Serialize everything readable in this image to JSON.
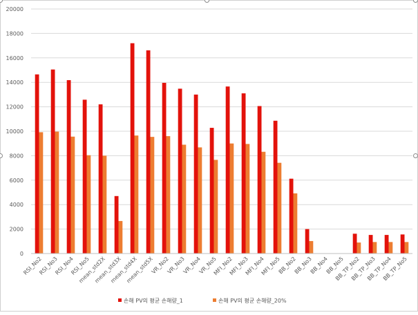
{
  "chart_data": {
    "type": "bar",
    "title": "",
    "xlabel": "",
    "ylabel": "",
    "ylim": [
      0,
      20000
    ],
    "yticks": [
      0,
      2000,
      4000,
      6000,
      8000,
      10000,
      12000,
      14000,
      16000,
      18000,
      20000
    ],
    "grid": true,
    "legend_position": "bottom",
    "categories": [
      "RSI_No2",
      "RSI_No3",
      "RSI_No4",
      "RSI_No5",
      "mean_std2X",
      "mean_std3X",
      "mean_std4X",
      "mean_std5X",
      "VR_No2",
      "VR_No3",
      "VR_No4",
      "VR_No5",
      "MFI_No2",
      "MFI_No3",
      "MFI_No4",
      "MFI_No5",
      "BB_No2",
      "BB_No3",
      "BB_No4",
      "BB_No5",
      "BB_TP_No2",
      "BB_TP_No3",
      "BB_TP_No4",
      "BB_TP_No5"
    ],
    "series": [
      {
        "name": "손해 PV의 평균 손해량_1",
        "color": "#e3120b",
        "values": [
          14650,
          15050,
          14180,
          12580,
          12200,
          4700,
          17200,
          16620,
          13960,
          13480,
          13000,
          10280,
          13660,
          13100,
          12060,
          10860,
          6120,
          2000,
          0,
          0,
          1620,
          1520,
          1520,
          1560
        ]
      },
      {
        "name": "손해 PV의 평균 손해량_20%",
        "color": "#ed7d31",
        "values": [
          9920,
          9970,
          9560,
          8040,
          8000,
          2660,
          9650,
          9540,
          9600,
          8900,
          8680,
          7660,
          9000,
          8960,
          8320,
          7420,
          4920,
          1020,
          0,
          0,
          900,
          940,
          940,
          940
        ]
      }
    ]
  }
}
